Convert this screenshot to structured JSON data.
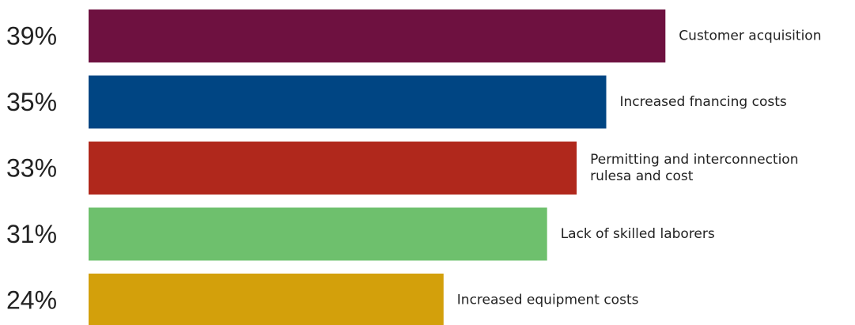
{
  "chart_data": {
    "type": "bar",
    "orientation": "horizontal",
    "categories": [
      "Customer acquisition",
      "Increased fnancing costs",
      "Permitting and interconnection rulesa and cost",
      "Lack of skilled laborers",
      "Increased equipment costs"
    ],
    "label_lines": [
      [
        "Customer acquisition"
      ],
      [
        "Increased fnancing costs"
      ],
      [
        "Permitting and interconnection",
        "rulesa and cost"
      ],
      [
        "Lack of skilled laborers"
      ],
      [
        "Increased equipment costs"
      ]
    ],
    "values": [
      39,
      35,
      33,
      31,
      24
    ],
    "value_labels": [
      "39%",
      "35%",
      "33%",
      "31%",
      "24%"
    ],
    "unit": "%",
    "colors": [
      "#6e1140",
      "#004583",
      "#b0281c",
      "#6ec06d",
      "#d3a00b"
    ],
    "title": "",
    "xlabel": "",
    "ylabel": "",
    "grid": false,
    "legend": "none"
  }
}
